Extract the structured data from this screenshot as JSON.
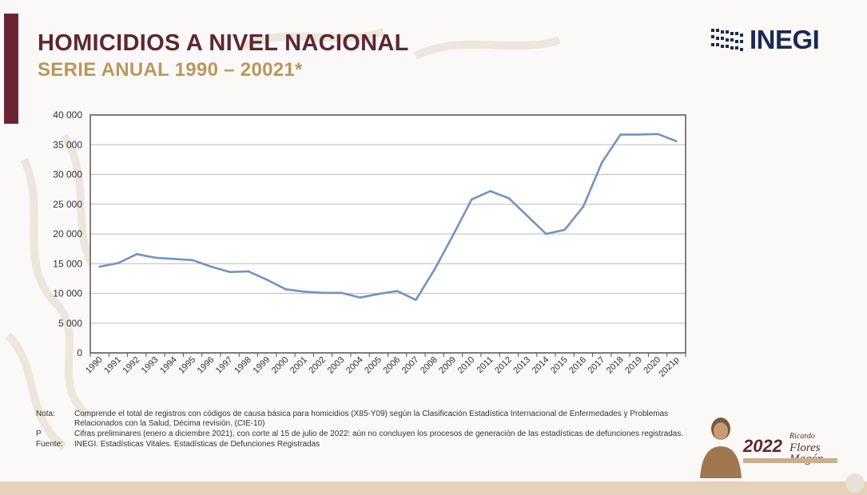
{
  "header": {
    "title": "HOMICIDIOS A NIVEL NACIONAL",
    "subtitle": "SERIE ANUAL 1990 – 20021*",
    "logo_text": "INEGI"
  },
  "notes": [
    {
      "label": "Nota:",
      "text": "Comprende el total de registros con códigos de causa básica para homicidios (X85-Y09) según la Clasificación Estadística Internacional de Enfermedades y Problemas Relacionados con la Salud, Décima revisión. (CIE-10)"
    },
    {
      "label": "P",
      "text": "Cifras preliminares (enero a diciembre 2021), con corte al 15 de julio de 2022: aún no concluyen los procesos de generación de las estadísticas de defunciones registradas."
    },
    {
      "label": "Fuente:",
      "text": "INEGI. Estadísticas Vitales. Estadísticas de Defunciones Registradas"
    }
  ],
  "badge": {
    "year": "2022",
    "name_line1": "Ricardo",
    "name_line2": "Flores",
    "name_line3": "Magón"
  },
  "colors": {
    "line": "#7293c3",
    "title": "#5e2633",
    "subtitle": "#b9975b",
    "accent_bar": "#6b2433"
  },
  "chart_data": {
    "type": "line",
    "title": "HOMICIDIOS A NIVEL NACIONAL",
    "subtitle": "SERIE ANUAL 1990 – 20021*",
    "xlabel": "",
    "ylabel": "",
    "categories": [
      "1990",
      "1991",
      "1992",
      "1993",
      "1994",
      "1995",
      "1996",
      "1997",
      "1998",
      "1999",
      "2000",
      "2001",
      "2002",
      "2003",
      "2004",
      "2005",
      "2006",
      "2007",
      "2008",
      "2009",
      "2010",
      "2011",
      "2012",
      "2013",
      "2014",
      "2015",
      "2016",
      "2017",
      "2018",
      "2019",
      "2020",
      "2021p"
    ],
    "series": [
      {
        "values": [
          14500,
          15100,
          16600,
          16000,
          15800,
          15600,
          14500,
          13600,
          13700,
          12300,
          10700,
          10300,
          10100,
          10100,
          9300,
          9900,
          10400,
          8900,
          14000,
          19800,
          25800,
          27200,
          26000,
          23000,
          20000,
          20700,
          24600,
          32000,
          36700,
          36700,
          36800,
          35600
        ]
      }
    ],
    "ylim": [
      0,
      40000
    ],
    "yticks": [
      0,
      5000,
      10000,
      15000,
      20000,
      25000,
      30000,
      35000,
      40000
    ],
    "ytick_labels": [
      "0",
      "5 000",
      "10 000",
      "15 000",
      "20 000",
      "25 000",
      "30 000",
      "35 000",
      "40 000"
    ],
    "grid": true,
    "legend": "none"
  }
}
